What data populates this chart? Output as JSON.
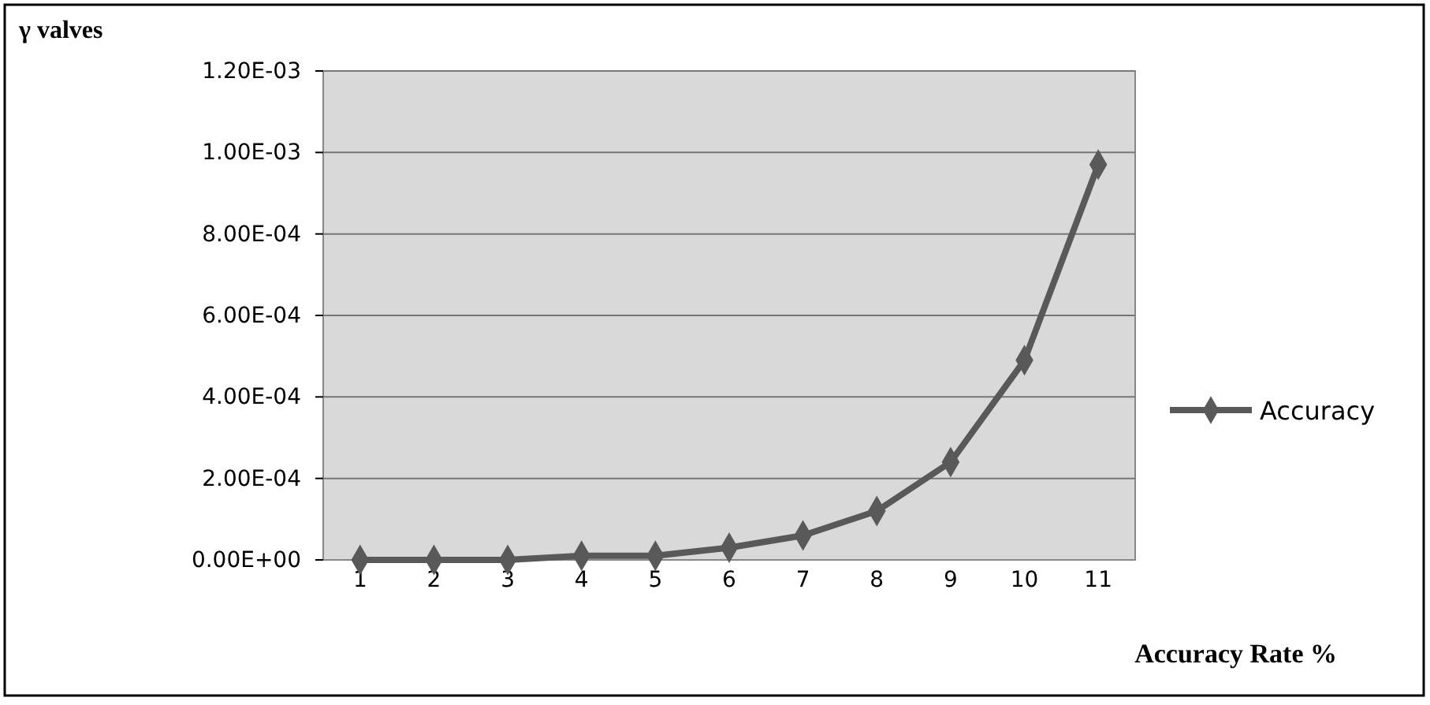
{
  "chart_data": {
    "type": "line",
    "xlabel": "Accuracy Rate %",
    "ylabel": "γ valves",
    "categories": [
      "1",
      "2",
      "3",
      "4",
      "5",
      "6",
      "7",
      "8",
      "9",
      "10",
      "11"
    ],
    "series": [
      {
        "name": "Accuracy",
        "color": "#595959",
        "values": [
          0,
          0,
          0,
          1e-05,
          1e-05,
          3e-05,
          6e-05,
          0.00012,
          0.00024,
          0.00049,
          0.00097
        ]
      }
    ],
    "ylim": [
      0,
      0.0012
    ],
    "yticks": [
      {
        "value": 0,
        "label": "0.00E+00"
      },
      {
        "value": 0.0002,
        "label": "2.00E-04"
      },
      {
        "value": 0.0004,
        "label": "4.00E-04"
      },
      {
        "value": 0.0006,
        "label": "6.00E-04"
      },
      {
        "value": 0.0008,
        "label": "8.00E-04"
      },
      {
        "value": 0.001,
        "label": "1.00E-03"
      },
      {
        "value": 0.0012,
        "label": "1.20E-03"
      }
    ],
    "grid": "y",
    "legend": "right",
    "marker": "diamond",
    "line_style": "solid"
  }
}
